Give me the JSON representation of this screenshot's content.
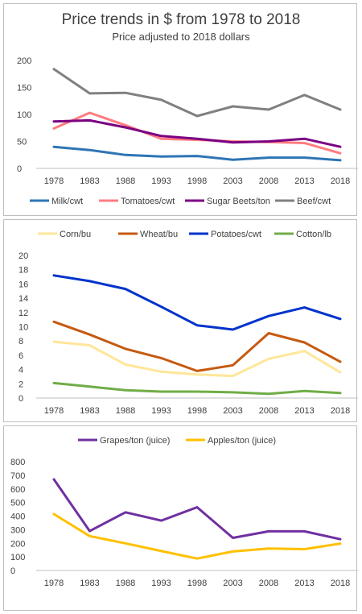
{
  "colors": {
    "milk": "#2e75b6",
    "tomatoes": "#ff7c80",
    "sugar_beets": "#7b0083",
    "beef": "#808080",
    "corn": "#ffe699",
    "wheat": "#c55a11",
    "potatoes": "#0033cc",
    "cotton": "#70ad47",
    "grapes": "#7030a0",
    "apples": "#ffc000",
    "axis": "#bfbfbf",
    "text": "#404040"
  },
  "chart_data": [
    {
      "type": "line",
      "title": "Price trends in $ from 1978 to 2018",
      "subtitle": "Price adjusted to 2018 dollars",
      "categories": [
        "1978",
        "1983",
        "1988",
        "1993",
        "1998",
        "2003",
        "2008",
        "2013",
        "2018"
      ],
      "ylim": [
        0,
        200
      ],
      "yticks": [
        "0",
        "50",
        "100",
        "150",
        "200"
      ],
      "legend_position": "bottom",
      "series": [
        {
          "name": "Milk/cwt",
          "color_key": "milk",
          "values": [
            40,
            34,
            25,
            22,
            23,
            16,
            20,
            20,
            15
          ]
        },
        {
          "name": "Tomatoes/cwt",
          "color_key": "tomatoes",
          "values": [
            74,
            103,
            80,
            55,
            53,
            50,
            49,
            47,
            28
          ]
        },
        {
          "name": "Sugar Beets/ton",
          "color_key": "sugar_beets",
          "values": [
            87,
            89,
            76,
            60,
            55,
            48,
            50,
            55,
            40
          ]
        },
        {
          "name": "Beef/cwt",
          "color_key": "beef",
          "values": [
            184,
            139,
            140,
            127,
            97,
            115,
            109,
            136,
            109
          ]
        }
      ]
    },
    {
      "type": "line",
      "categories": [
        "1978",
        "1983",
        "1988",
        "1993",
        "1998",
        "2003",
        "2008",
        "2013",
        "2018"
      ],
      "ylim": [
        0,
        20
      ],
      "yticks": [
        "0",
        "2",
        "4",
        "6",
        "8",
        "10",
        "12",
        "14",
        "16",
        "18",
        "20"
      ],
      "legend_position": "top",
      "series": [
        {
          "name": "Corn/bu",
          "color_key": "corn",
          "values": [
            7.9,
            7.4,
            4.7,
            3.7,
            3.3,
            3.1,
            5.5,
            6.6,
            3.6
          ]
        },
        {
          "name": "Wheat/bu",
          "color_key": "wheat",
          "values": [
            10.7,
            8.9,
            6.9,
            5.6,
            3.8,
            4.6,
            9.1,
            7.8,
            5.1
          ]
        },
        {
          "name": "Potatoes/cwt",
          "color_key": "potatoes",
          "values": [
            17.2,
            16.4,
            15.3,
            12.8,
            10.2,
            9.6,
            11.5,
            12.7,
            11.1
          ]
        },
        {
          "name": "Cotton/lb",
          "color_key": "cotton",
          "values": [
            2.1,
            1.6,
            1.1,
            0.9,
            0.9,
            0.8,
            0.6,
            1.0,
            0.7
          ]
        }
      ]
    },
    {
      "type": "line",
      "categories": [
        "1978",
        "1983",
        "1988",
        "1993",
        "1998",
        "2003",
        "2008",
        "2013",
        "2018"
      ],
      "ylim": [
        0,
        800
      ],
      "yticks": [
        "0",
        "100",
        "200",
        "300",
        "400",
        "500",
        "600",
        "700",
        "800"
      ],
      "legend_position": "top",
      "series": [
        {
          "name": "Grapes/ton (juice)",
          "color_key": "grapes",
          "values": [
            670,
            290,
            428,
            367,
            465,
            240,
            288,
            288,
            230
          ]
        },
        {
          "name": "Apples/ton (juice)",
          "color_key": "apples",
          "values": [
            415,
            253,
            200,
            143,
            88,
            140,
            162,
            157,
            198
          ]
        }
      ]
    }
  ]
}
